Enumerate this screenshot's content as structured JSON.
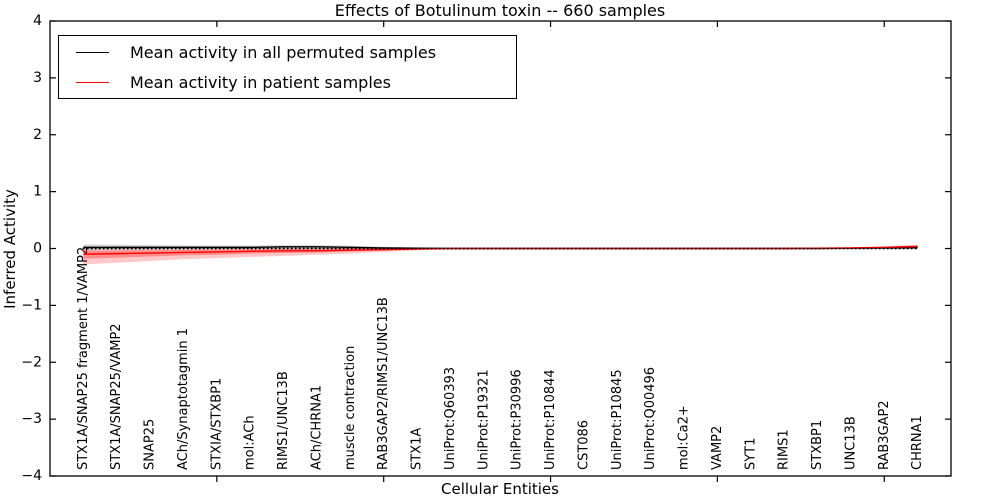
{
  "title": "Effects of Botulinum toxin -- 660 samples",
  "legend": {
    "entries": [
      {
        "label": "Mean activity in all permuted samples",
        "color": "#000000"
      },
      {
        "label": "Mean activity in patient samples",
        "color": "#ff0000"
      }
    ]
  },
  "chart_data": {
    "type": "line",
    "title": "Effects of Botulinum toxin -- 660 samples",
    "xlabel": "Cellular Entities",
    "ylabel": "Inferred Activity",
    "ylim": [
      -4,
      4
    ],
    "xlim": [
      0,
      27
    ],
    "yticks": [
      4,
      3,
      2,
      1,
      0,
      -1,
      -2,
      -3,
      -4
    ],
    "xticks": [
      5,
      10,
      15,
      20,
      25
    ],
    "grid": false,
    "legend_position": "upper left",
    "categories": [
      "STX1A/SNAP25 fragment 1/VAMP2",
      "STX1A/SNAP25/VAMP2",
      "SNAP25",
      "ACh/Synaptotagmin 1",
      "STXIA/STXBP1",
      "mol:ACh",
      "RIMS1/UNC13B",
      "ACh/CHRNA1",
      "muscle contraction",
      "RAB3GAP2/RIMS1/UNC13B",
      "STX1A",
      "UniProt:Q60393",
      "UniProt:P19321",
      "UniProt:P30996",
      "UniProt:P10844",
      "CST086",
      "UniProt:P10845",
      "UniProt:Q00496",
      "mol:Ca2+",
      "VAMP2",
      "SYT1",
      "RIMS1",
      "STXBP1",
      "UNC13B",
      "RAB3GAP2",
      "CHRNA1"
    ],
    "series": [
      {
        "name": "Mean activity in all permuted samples",
        "color": "#000000",
        "style": "solid",
        "values": [
          0.02,
          0.02,
          0.02,
          0.02,
          0.02,
          0.02,
          0.03,
          0.03,
          0.02,
          0.01,
          0.005,
          0,
          0,
          0,
          0,
          0,
          0,
          0,
          0,
          0,
          0,
          0,
          0,
          0.005,
          0.01,
          0.015
        ]
      },
      {
        "name": "Mean activity in patient samples",
        "color": "#ff0000",
        "style": "solid",
        "values": [
          -0.1,
          -0.09,
          -0.08,
          -0.07,
          -0.06,
          -0.05,
          -0.04,
          -0.04,
          -0.03,
          -0.02,
          -0.01,
          0,
          0,
          0,
          0,
          0,
          0,
          0,
          0,
          0,
          0,
          0,
          0.005,
          0.01,
          0.02,
          0.035
        ]
      },
      {
        "name": "zero-reference",
        "color": "#000000",
        "style": "dotted",
        "values": [
          0,
          0,
          0,
          0,
          0,
          0,
          0,
          0,
          0,
          0,
          0,
          0,
          0,
          0,
          0,
          0,
          0,
          0,
          0,
          0,
          0,
          0,
          0,
          0,
          0,
          0
        ]
      }
    ],
    "bands": [
      {
        "name": "permuted-samples-band",
        "color": "rgba(0,0,0,0.17)",
        "high": [
          0.07,
          0.065,
          0.06,
          0.055,
          0.05,
          0.05,
          0.06,
          0.06,
          0.05,
          0.03,
          0.02,
          0.01,
          0.01,
          0.01,
          0.01,
          0.01,
          0.01,
          0.01,
          0.01,
          0.01,
          0.01,
          0.01,
          0.01,
          0.015,
          0.02,
          0.03
        ],
        "low": [
          -0.03,
          -0.025,
          -0.02,
          -0.015,
          -0.01,
          -0.01,
          0,
          0,
          -0.01,
          -0.01,
          -0.01,
          -0.01,
          -0.01,
          -0.01,
          -0.01,
          -0.01,
          -0.01,
          -0.01,
          -0.01,
          -0.01,
          -0.01,
          -0.01,
          -0.01,
          -0.005,
          0,
          0.005
        ]
      },
      {
        "name": "patient-samples-band-outer",
        "color": "rgba(255,0,0,0.22)",
        "high": [
          -0.02,
          -0.015,
          -0.01,
          -0.01,
          -0.005,
          0,
          0,
          0.005,
          0.005,
          0.005,
          0.005,
          0.01,
          0.01,
          0.01,
          0.01,
          0.01,
          0.01,
          0.01,
          0.01,
          0.01,
          0.01,
          0.01,
          0.015,
          0.02,
          0.035,
          0.07
        ],
        "low": [
          -0.28,
          -0.25,
          -0.22,
          -0.19,
          -0.17,
          -0.15,
          -0.13,
          -0.11,
          -0.09,
          -0.06,
          -0.03,
          -0.015,
          -0.01,
          -0.01,
          -0.01,
          -0.01,
          -0.01,
          -0.01,
          -0.01,
          -0.01,
          -0.01,
          -0.005,
          0,
          0.005,
          0.01,
          0.02
        ]
      },
      {
        "name": "patient-samples-band-inner",
        "color": "rgba(255,0,0,0.30)",
        "high": [
          -0.04,
          -0.035,
          -0.03,
          -0.025,
          -0.02,
          -0.015,
          -0.01,
          -0.005,
          0,
          0,
          0,
          0.005,
          0.005,
          0.005,
          0.005,
          0.005,
          0.005,
          0.005,
          0.005,
          0.005,
          0.005,
          0.005,
          0.01,
          0.015,
          0.03,
          0.05
        ],
        "low": [
          -0.18,
          -0.16,
          -0.14,
          -0.12,
          -0.11,
          -0.09,
          -0.08,
          -0.07,
          -0.05,
          -0.04,
          -0.02,
          -0.01,
          -0.005,
          -0.005,
          -0.005,
          -0.005,
          -0.005,
          -0.005,
          -0.005,
          -0.005,
          -0.005,
          0,
          0,
          0.005,
          0.01,
          0.025
        ]
      }
    ]
  }
}
